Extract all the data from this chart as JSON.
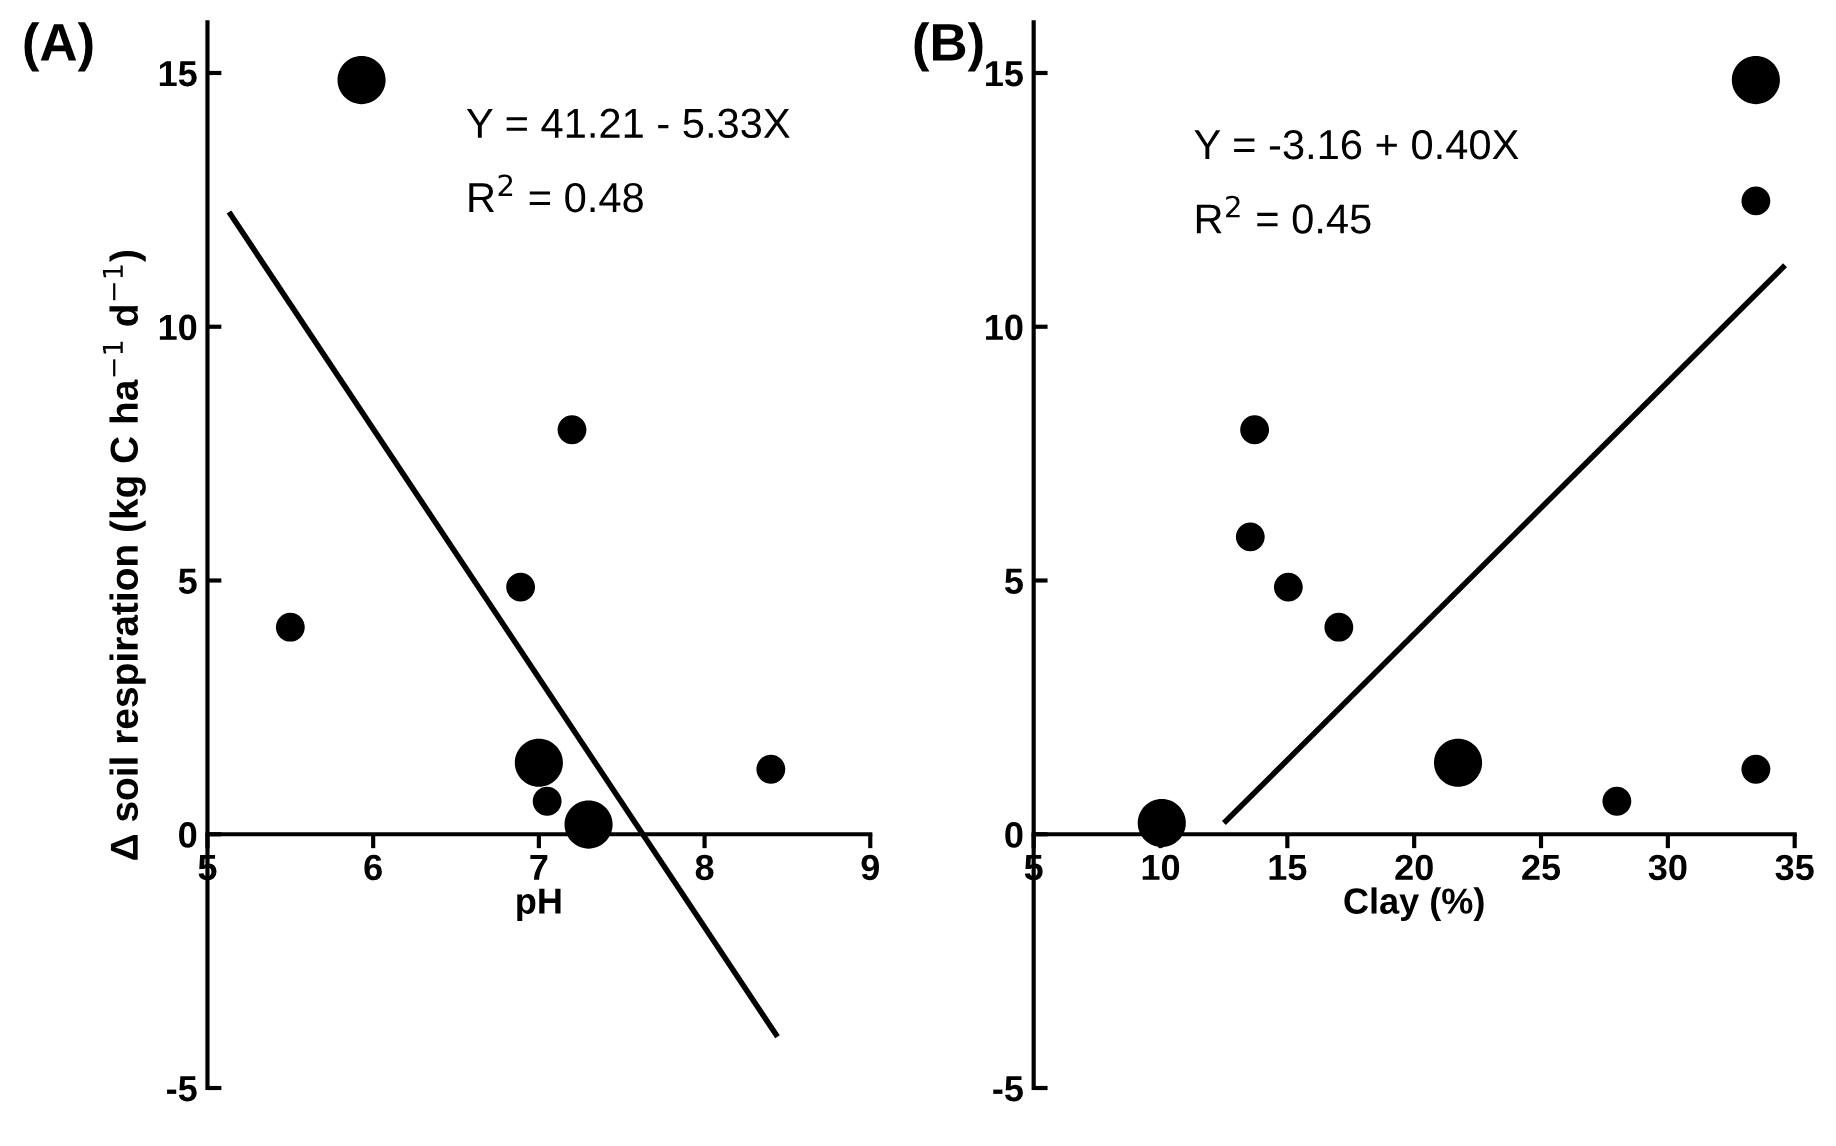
{
  "chart_data": [
    {
      "type": "bubble",
      "title": "(A)",
      "xlabel": "pH",
      "ylabel": "Δ soil respiration (kg C ha$^{−1}$ d$^{−1}$)",
      "xlim": [
        5,
        9
      ],
      "xticks": [
        5,
        6,
        7,
        8,
        9
      ],
      "ylim": [
        -5,
        16
      ],
      "yticks": [
        {
          "value": -5,
          "label": "-5"
        },
        0,
        5,
        10,
        15
      ],
      "grid": false,
      "legend": false,
      "annotations": [
        "Y = 41.21 - 5.33X",
        "R$^{2}$ = 0.48"
      ],
      "series": [
        {
          "marker": "circle",
          "color": "#000000",
          "x": [
            5.93,
            5.5,
            6.89,
            7.2,
            7.0,
            7.05,
            7.3,
            8.4
          ],
          "values": [
            14.86,
            4.08,
            4.87,
            7.97,
            1.41,
            0.65,
            0.19,
            1.28
          ],
          "sizes": [
            1,
            0.36,
            0.36,
            0.36,
            1,
            0.36,
            1,
            0.36
          ]
        },
        {
          "type": "line",
          "color": "#000000",
          "x": [
            5.13,
            8.44
          ],
          "values": [
            12.26,
            -3.99
          ],
          "line_style": "solid"
        }
      ]
    },
    {
      "type": "bubble",
      "title": "(B)",
      "xlabel": "Clay (%)",
      "xlim": [
        5,
        35
      ],
      "xticks": [
        5,
        10,
        15,
        20,
        25,
        30,
        35
      ],
      "ylim": [
        -5,
        16
      ],
      "yticks": [
        {
          "value": -5,
          "label": "-5"
        },
        0,
        5,
        10,
        15
      ],
      "grid": false,
      "legend": false,
      "annotations": [
        "Y = -3.16 + 0.40X",
        "R$^{2}$ = 0.45"
      ],
      "series": [
        {
          "marker": "circle",
          "color": "#000000",
          "x": [
            33.47,
            33.47,
            13.71,
            13.54,
            15.04,
            17.03,
            21.73,
            27.99,
            33.47,
            10.05
          ],
          "values": [
            14.86,
            12.48,
            7.97,
            5.86,
            4.87,
            4.08,
            1.41,
            0.65,
            1.28,
            0.22
          ],
          "sizes": [
            1,
            0.36,
            0.36,
            0.36,
            0.36,
            0.36,
            1,
            0.36,
            0.36,
            1
          ]
        },
        {
          "type": "line",
          "color": "#000000",
          "x": [
            12.5,
            34.62
          ],
          "values": [
            0.22,
            11.21
          ],
          "line_style": "solid"
        }
      ]
    }
  ]
}
